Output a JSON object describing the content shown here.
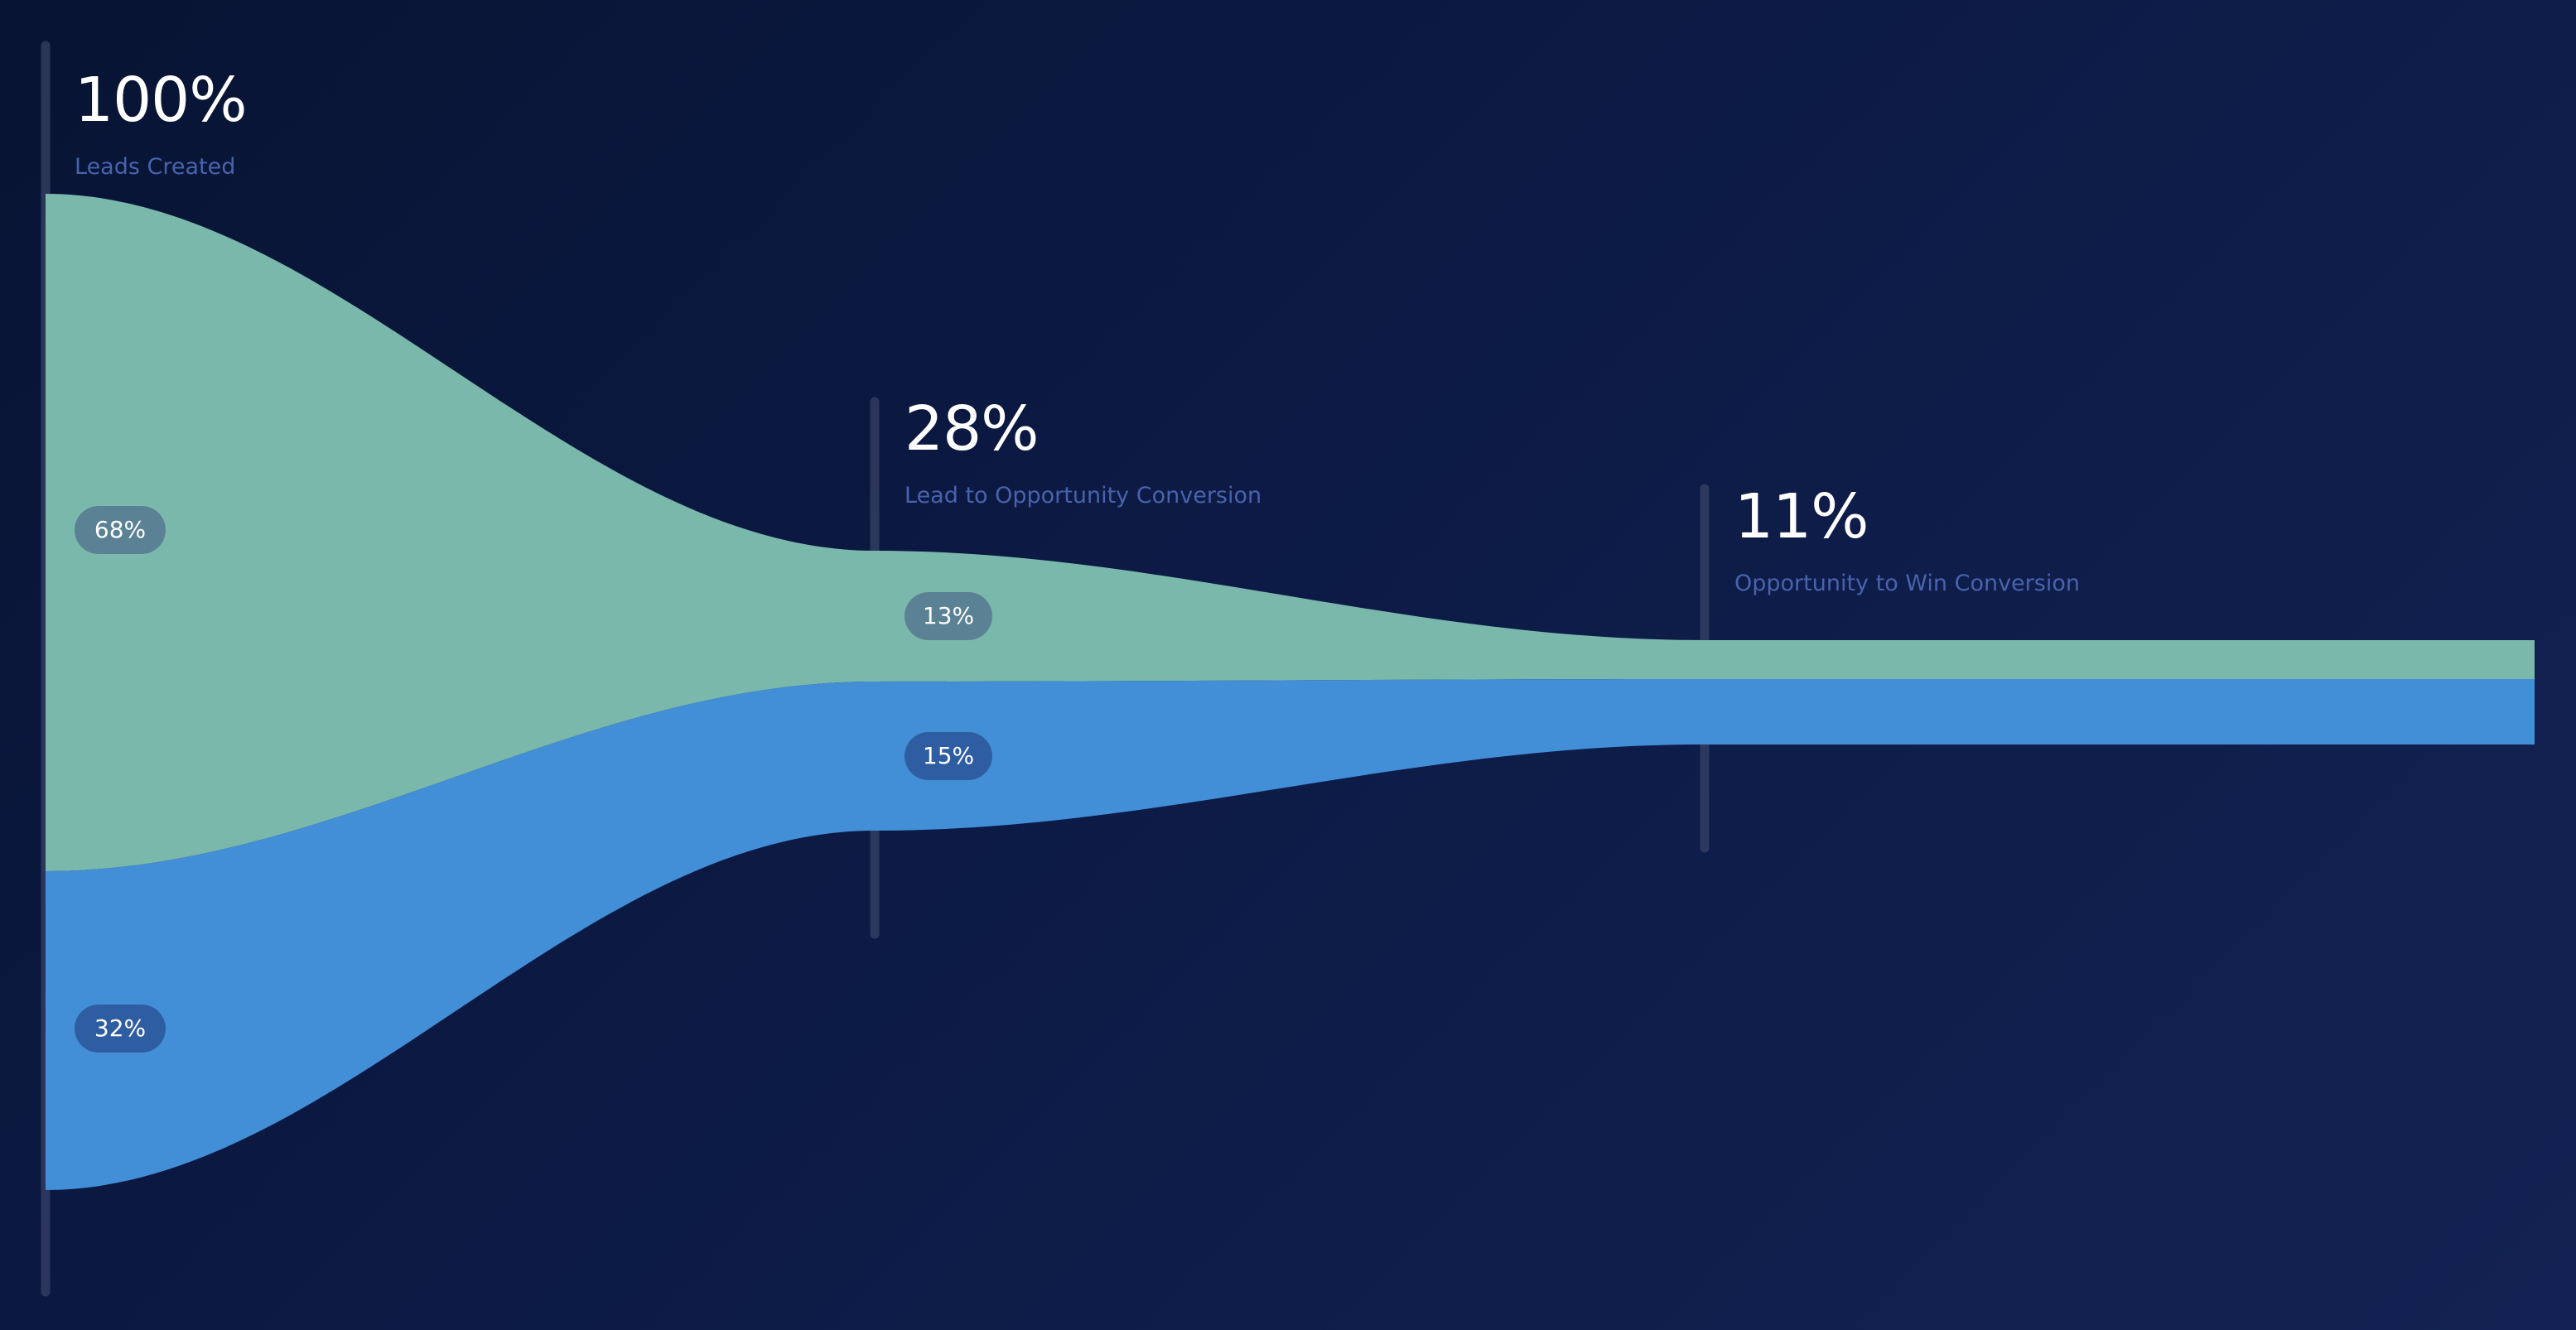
{
  "chart_data": {
    "type": "funnel",
    "stages": [
      {
        "value": "100%",
        "label": "Leads Created"
      },
      {
        "value": "28%",
        "label": "Lead to Opportunity Conversion"
      },
      {
        "value": "11%",
        "label": "Opportunity to Win Conversion"
      }
    ],
    "series": [
      {
        "values": [
          68,
          13,
          5
        ]
      },
      {
        "values": [
          32,
          15,
          6
        ]
      }
    ],
    "segment_labels": [
      [
        "68%",
        "32%"
      ],
      [
        "13%",
        "15%"
      ]
    ]
  },
  "colors": {
    "series_a": "#7ab8ab",
    "series_b": "#428fd7",
    "divider": "#3a4468",
    "value_text": "#ffffff",
    "label_text": "#4863ad"
  }
}
